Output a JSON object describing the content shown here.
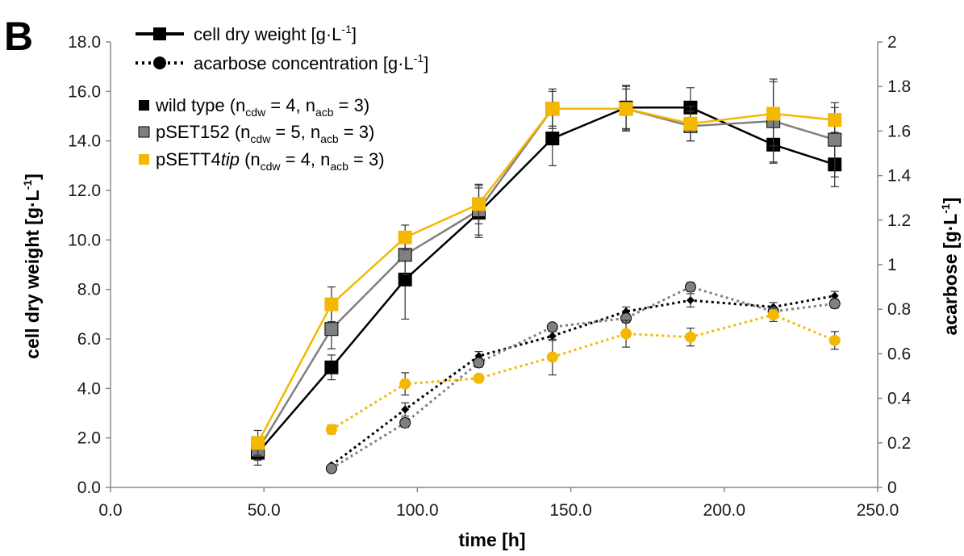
{
  "panel_label": "B",
  "legend": {
    "cdw_label": "cell dry weight [g·L",
    "acb_label": "acarbose concentration [g·L",
    "unit_tail": "]",
    "unit_exp": "-1",
    "strains": [
      {
        "name": "wild type (n",
        "n_cdw": "4",
        "n_acb": "3",
        "color": "#000000"
      },
      {
        "name": "pSET152 (n",
        "n_cdw": "5",
        "n_acb": "3",
        "color": "#808080"
      },
      {
        "name": "pSETT4",
        "name_italic": "tip",
        "name_after": " (n",
        "n_cdw": "4",
        "n_acb": "3",
        "color": "#f5b800"
      }
    ],
    "sub_cdw": "cdw",
    "sub_acb": "acb",
    "eq": " = ",
    "sep": ", n",
    "close": ")"
  },
  "chart_data": {
    "type": "line",
    "xlabel": "time [h]",
    "ylabel_left": "cell dry weight [g·L",
    "ylabel_right": "acarbose [g·L",
    "ylabel_exp": "-1",
    "ylabel_tail": "]",
    "xlim": [
      0,
      250
    ],
    "ylim_left": [
      0,
      18
    ],
    "ylim_right": [
      0,
      2
    ],
    "x_ticks": [
      "0.0",
      "50.0",
      "100.0",
      "150.0",
      "200.0",
      "250.0"
    ],
    "y_left_ticks": [
      "0.0",
      "2.0",
      "4.0",
      "6.0",
      "8.0",
      "10.0",
      "12.0",
      "14.0",
      "16.0",
      "18.0"
    ],
    "y_right_ticks": [
      "0",
      "0.2",
      "0.4",
      "0.6",
      "0.8",
      "1",
      "1.2",
      "1.4",
      "1.6",
      "1.8",
      "2"
    ],
    "grid": false,
    "colors": {
      "wild_type": "#000000",
      "pSET152": "#808080",
      "pSETT4tip": "#f5b800"
    },
    "series": [
      {
        "name": "wild type",
        "measure": "cell dry weight",
        "axis": "left",
        "style": "solid",
        "marker": "square",
        "color": "#000000",
        "x": [
          48,
          72,
          96,
          120,
          144,
          168,
          189,
          216,
          236
        ],
        "y": [
          1.4,
          4.85,
          8.4,
          11.1,
          14.1,
          15.35,
          15.35,
          13.85,
          13.05
        ],
        "err": [
          0.5,
          0.5,
          1.6,
          1.0,
          1.1,
          0.9,
          0.8,
          0.7,
          0.9
        ]
      },
      {
        "name": "pSET152",
        "measure": "cell dry weight",
        "axis": "left",
        "style": "solid",
        "marker": "square",
        "color": "#808080",
        "x": [
          48,
          72,
          96,
          120,
          144,
          168,
          189,
          216,
          236
        ],
        "y": [
          1.5,
          6.4,
          9.4,
          11.2,
          15.3,
          15.3,
          14.6,
          14.8,
          14.05
        ],
        "err": [
          0.4,
          0.8,
          0.8,
          1.0,
          0.8,
          0.9,
          0.6,
          1.7,
          1.5
        ]
      },
      {
        "name": "pSETT4tip",
        "measure": "cell dry weight",
        "axis": "left",
        "style": "solid",
        "marker": "square",
        "color": "#f5b800",
        "x": [
          48,
          72,
          96,
          120,
          144,
          168,
          189,
          216,
          236
        ],
        "y": [
          1.8,
          7.4,
          10.1,
          11.45,
          15.3,
          15.3,
          14.7,
          15.1,
          14.85
        ],
        "err": [
          0.5,
          0.7,
          0.5,
          0.8,
          0.7,
          0.8,
          0.7,
          1.3,
          0.5
        ]
      },
      {
        "name": "wild type",
        "measure": "acarbose concentration",
        "axis": "right",
        "style": "dotted",
        "marker": "diamond",
        "color": "#000000",
        "x": [
          72,
          96,
          120,
          144,
          168,
          189,
          216,
          236
        ],
        "y": [
          0.1,
          0.35,
          0.59,
          0.68,
          0.79,
          0.84,
          0.81,
          0.86
        ],
        "err": [
          0.0,
          0.03,
          0.02,
          0.02,
          0.02,
          0.03,
          0.02,
          0.02
        ]
      },
      {
        "name": "pSET152",
        "measure": "acarbose concentration",
        "axis": "right",
        "style": "dotted",
        "marker": "circle",
        "color": "#808080",
        "x": [
          72,
          96,
          120,
          144,
          168,
          189,
          216,
          236
        ],
        "y": [
          0.085,
          0.29,
          0.56,
          0.72,
          0.76,
          0.9,
          0.79,
          0.825
        ],
        "err": [
          0.0,
          0.02,
          0.02,
          0.0,
          0.02,
          0.02,
          0.02,
          0.02
        ]
      },
      {
        "name": "pSETT4tip",
        "measure": "acarbose concentration",
        "axis": "right",
        "style": "dotted",
        "marker": "circle",
        "color": "#f5b800",
        "x": [
          72,
          96,
          120,
          144,
          168,
          189,
          216,
          236
        ],
        "y": [
          0.26,
          0.465,
          0.49,
          0.585,
          0.69,
          0.675,
          0.775,
          0.66
        ],
        "err": [
          0.02,
          0.05,
          0.0,
          0.08,
          0.06,
          0.04,
          0.03,
          0.04
        ]
      }
    ]
  }
}
